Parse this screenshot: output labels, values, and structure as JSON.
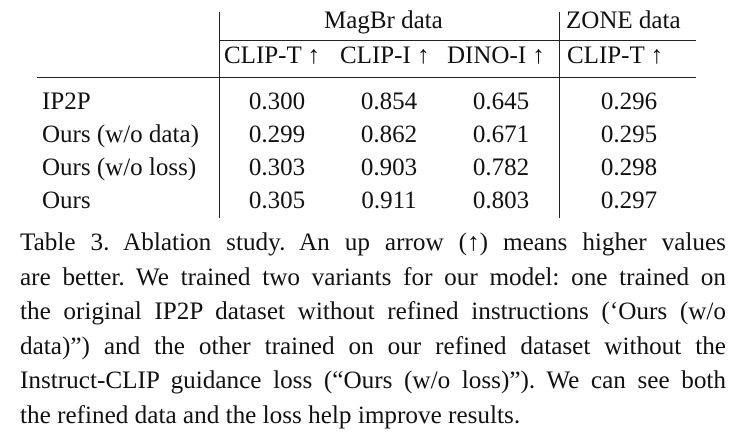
{
  "table": {
    "group_headers": {
      "magbr": "MagBr data",
      "zone": "ZONE data"
    },
    "columns": [
      "CLIP-T ↑",
      "CLIP-I ↑",
      "DINO-I ↑",
      "CLIP-T ↑"
    ],
    "rows": [
      {
        "method": "IP2P",
        "values": [
          "0.300",
          "0.854",
          "0.645",
          "0.296"
        ]
      },
      {
        "method": "Ours (w/o data)",
        "values": [
          "0.299",
          "0.862",
          "0.671",
          "0.295"
        ]
      },
      {
        "method": "Ours (w/o loss)",
        "values": [
          "0.303",
          "0.903",
          "0.782",
          "0.298"
        ]
      },
      {
        "method": "Ours",
        "values": [
          "0.305",
          "0.911",
          "0.803",
          "0.297"
        ]
      }
    ]
  },
  "caption": {
    "lines": [
      "Table 3.  Ablation study.  An up arrow (↑) means higher values",
      "are better. We trained two variants for our model: one trained on",
      "the original IP2P dataset without refined instructions (‘Ours (w/o",
      "data)”) and the other trained on our refined dataset without the",
      "Instruct-CLIP guidance loss (“Ours (w/o loss)”). We can see both",
      "the refined data and the loss help improve results."
    ]
  }
}
